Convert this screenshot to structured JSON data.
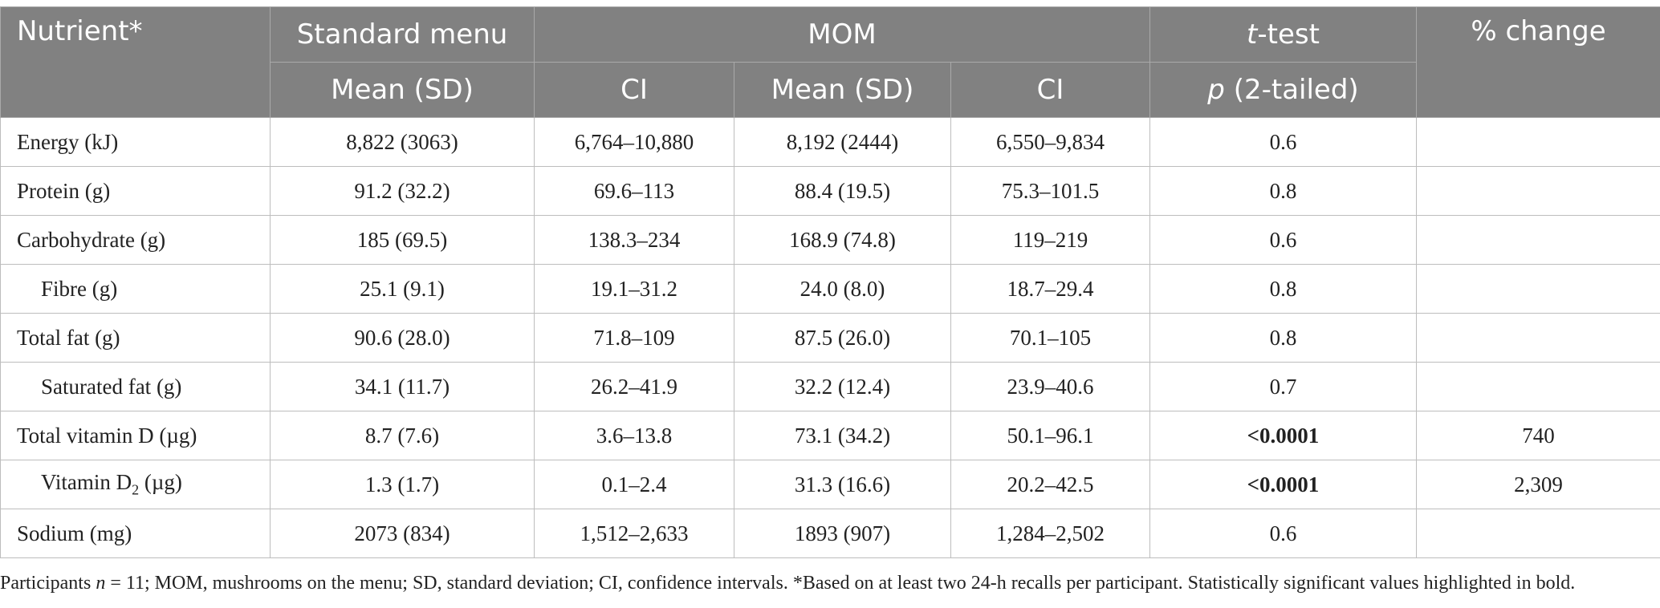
{
  "header": {
    "nutrient": "Nutrient*",
    "standard_menu": "Standard menu",
    "mom": "MOM",
    "ttest_italic": "t",
    "ttest_rest": "-test",
    "pct_change": "% change",
    "mean_sd_1": "Mean (SD)",
    "ci_1": "CI",
    "mean_sd_2": "Mean (SD)",
    "ci_2": "CI",
    "p_italic": "p",
    "p_rest": " (2-tailed)"
  },
  "rows": [
    {
      "label": "Energy (kJ)",
      "sm_mean": "8,822 (3063)",
      "sm_ci": "6,764–10,880",
      "mom_mean": "8,192 (2444)",
      "mom_ci": "6,550–9,834",
      "p": "0.6",
      "change": ""
    },
    {
      "label": "Protein (g)",
      "sm_mean": "91.2 (32.2)",
      "sm_ci": "69.6–113",
      "mom_mean": "88.4 (19.5)",
      "mom_ci": "75.3–101.5",
      "p": "0.8",
      "change": ""
    },
    {
      "label": "Carbohydrate (g)",
      "sm_mean": "185 (69.5)",
      "sm_ci": "138.3–234",
      "mom_mean": "168.9 (74.8)",
      "mom_ci": "119–219",
      "p": "0.6",
      "change": ""
    },
    {
      "label": "Fibre (g)",
      "sm_mean": "25.1 (9.1)",
      "sm_ci": "19.1–31.2",
      "mom_mean": "24.0 (8.0)",
      "mom_ci": "18.7–29.4",
      "p": "0.8",
      "change": ""
    },
    {
      "label": "Total fat (g)",
      "sm_mean": "90.6 (28.0)",
      "sm_ci": "71.8–109",
      "mom_mean": "87.5 (26.0)",
      "mom_ci": "70.1–105",
      "p": "0.8",
      "change": ""
    },
    {
      "label": "Saturated fat (g)",
      "sm_mean": "34.1 (11.7)",
      "sm_ci": "26.2–41.9",
      "mom_mean": "32.2 (12.4)",
      "mom_ci": "23.9–40.6",
      "p": "0.7",
      "change": ""
    },
    {
      "label": "Total vitamin D (µg)",
      "sm_mean": "8.7 (7.6)",
      "sm_ci": "3.6–13.8",
      "mom_mean": "73.1 (34.2)",
      "mom_ci": "50.1–96.1",
      "p": "<0.0001",
      "change": "740"
    },
    {
      "label_pre": "Vitamin D",
      "label_sub": "2",
      "label_post": " (µg)",
      "sm_mean": "1.3 (1.7)",
      "sm_ci": "0.1–2.4",
      "mom_mean": "31.3 (16.6)",
      "mom_ci": "20.2–42.5",
      "p": "<0.0001",
      "change": "2,309"
    },
    {
      "label": "Sodium (mg)",
      "sm_mean": "2073 (834)",
      "sm_ci": "1,512–2,633",
      "mom_mean": "1893 (907)",
      "mom_ci": "1,284–2,502",
      "p": "0.6",
      "change": ""
    }
  ],
  "footnote": {
    "pre": "Participants ",
    "n_italic": "n",
    "post": " = 11; MOM, mushrooms on the menu; SD, standard deviation; CI, confidence intervals. *Based on at least two 24-h recalls per participant. Statistically significant values highlighted in bold."
  }
}
